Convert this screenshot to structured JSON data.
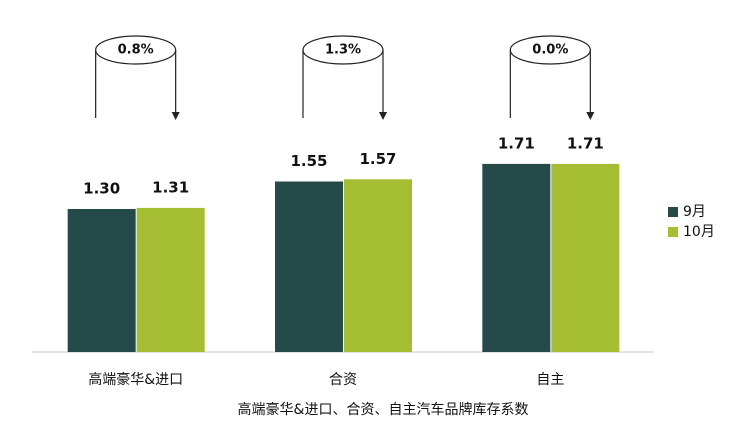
{
  "chart_data": {
    "type": "bar",
    "x_label": "高端豪华&进口、合资、自主汽车品牌库存系数",
    "categories": [
      "高端豪华&进口",
      "合资",
      "自主"
    ],
    "series": [
      {
        "name": "9月",
        "color": "#264a4a",
        "values": [
          1.3,
          1.55,
          1.71
        ],
        "value_labels": [
          "1.30",
          "1.55",
          "1.71"
        ]
      },
      {
        "name": "10月",
        "color": "#a4bd32",
        "values": [
          1.31,
          1.57,
          1.71
        ],
        "value_labels": [
          "1.31",
          "1.57",
          "1.71"
        ]
      }
    ],
    "annotations": [
      "0.8%",
      "1.3%",
      "0.0%"
    ],
    "ylim": [
      0,
      3.2
    ],
    "legend": "right"
  }
}
